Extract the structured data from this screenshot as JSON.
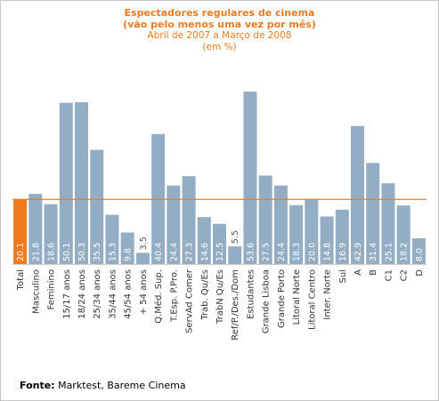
{
  "title": {
    "line1": "Espectadores regulares de cinema",
    "line2": "(vão pelo menos uma vez por mês)",
    "line3": "Abril de 2007 a Março de 2008",
    "line4": "(em %)"
  },
  "footer": {
    "label": "Fonte:",
    "text": "Marktest, Bareme Cinema"
  },
  "colors": {
    "bar": "#93aec4",
    "highlight": "#f07a1e",
    "reference_line": "#f07a1e",
    "plot_bg": "#ffffff",
    "value_label_on_bar": "#ffffff",
    "value_label_above": "#5a5a5a"
  },
  "chart_data": {
    "type": "bar",
    "categories": [
      "Total",
      "Masculino",
      "Feminino",
      "15/17 anos",
      "18/24 anos",
      "25/34 anos",
      "35/44 anos",
      "45/54 anos",
      "+ 54  anos",
      "Q.Méd. Sup.",
      "T.Esp. P.Pro.",
      "ServAd Comer",
      "Trab. Qu/Es",
      "TrabN Qu/Es",
      "Ref/P./Des./Dom",
      "Estudantes",
      "Grande Lisboa",
      "Grande Porto",
      "Litoral Norte",
      "Litoral Centro",
      "Inter. Norte",
      "Sul",
      "A",
      "B",
      "C1",
      "C2",
      "D"
    ],
    "values": [
      20.1,
      21.8,
      18.6,
      50.1,
      50.3,
      35.5,
      15.3,
      9.8,
      3.5,
      40.4,
      24.4,
      27.3,
      14.6,
      12.5,
      5.5,
      53.6,
      27.5,
      24.4,
      18.3,
      20.0,
      14.8,
      16.9,
      42.9,
      31.4,
      25.1,
      18.2,
      8.0
    ],
    "value_labels": [
      "20.1",
      "21.8",
      "18.6",
      "50.1",
      "50.3",
      "35.5",
      "15.3",
      "9.8",
      "3.5",
      "40.4",
      "24.4",
      "27.3",
      "14.6",
      "12.5",
      "5.5",
      "53.6",
      "27.5",
      "24.4",
      "18.3",
      "20.0",
      "14.8",
      "16.9",
      "42.9",
      "31.4",
      "25.1",
      "18.2",
      "8.0"
    ],
    "highlight_index": 0,
    "reference_value": 20.1,
    "ylim": [
      0,
      60
    ],
    "grid": false,
    "legend": "none"
  }
}
